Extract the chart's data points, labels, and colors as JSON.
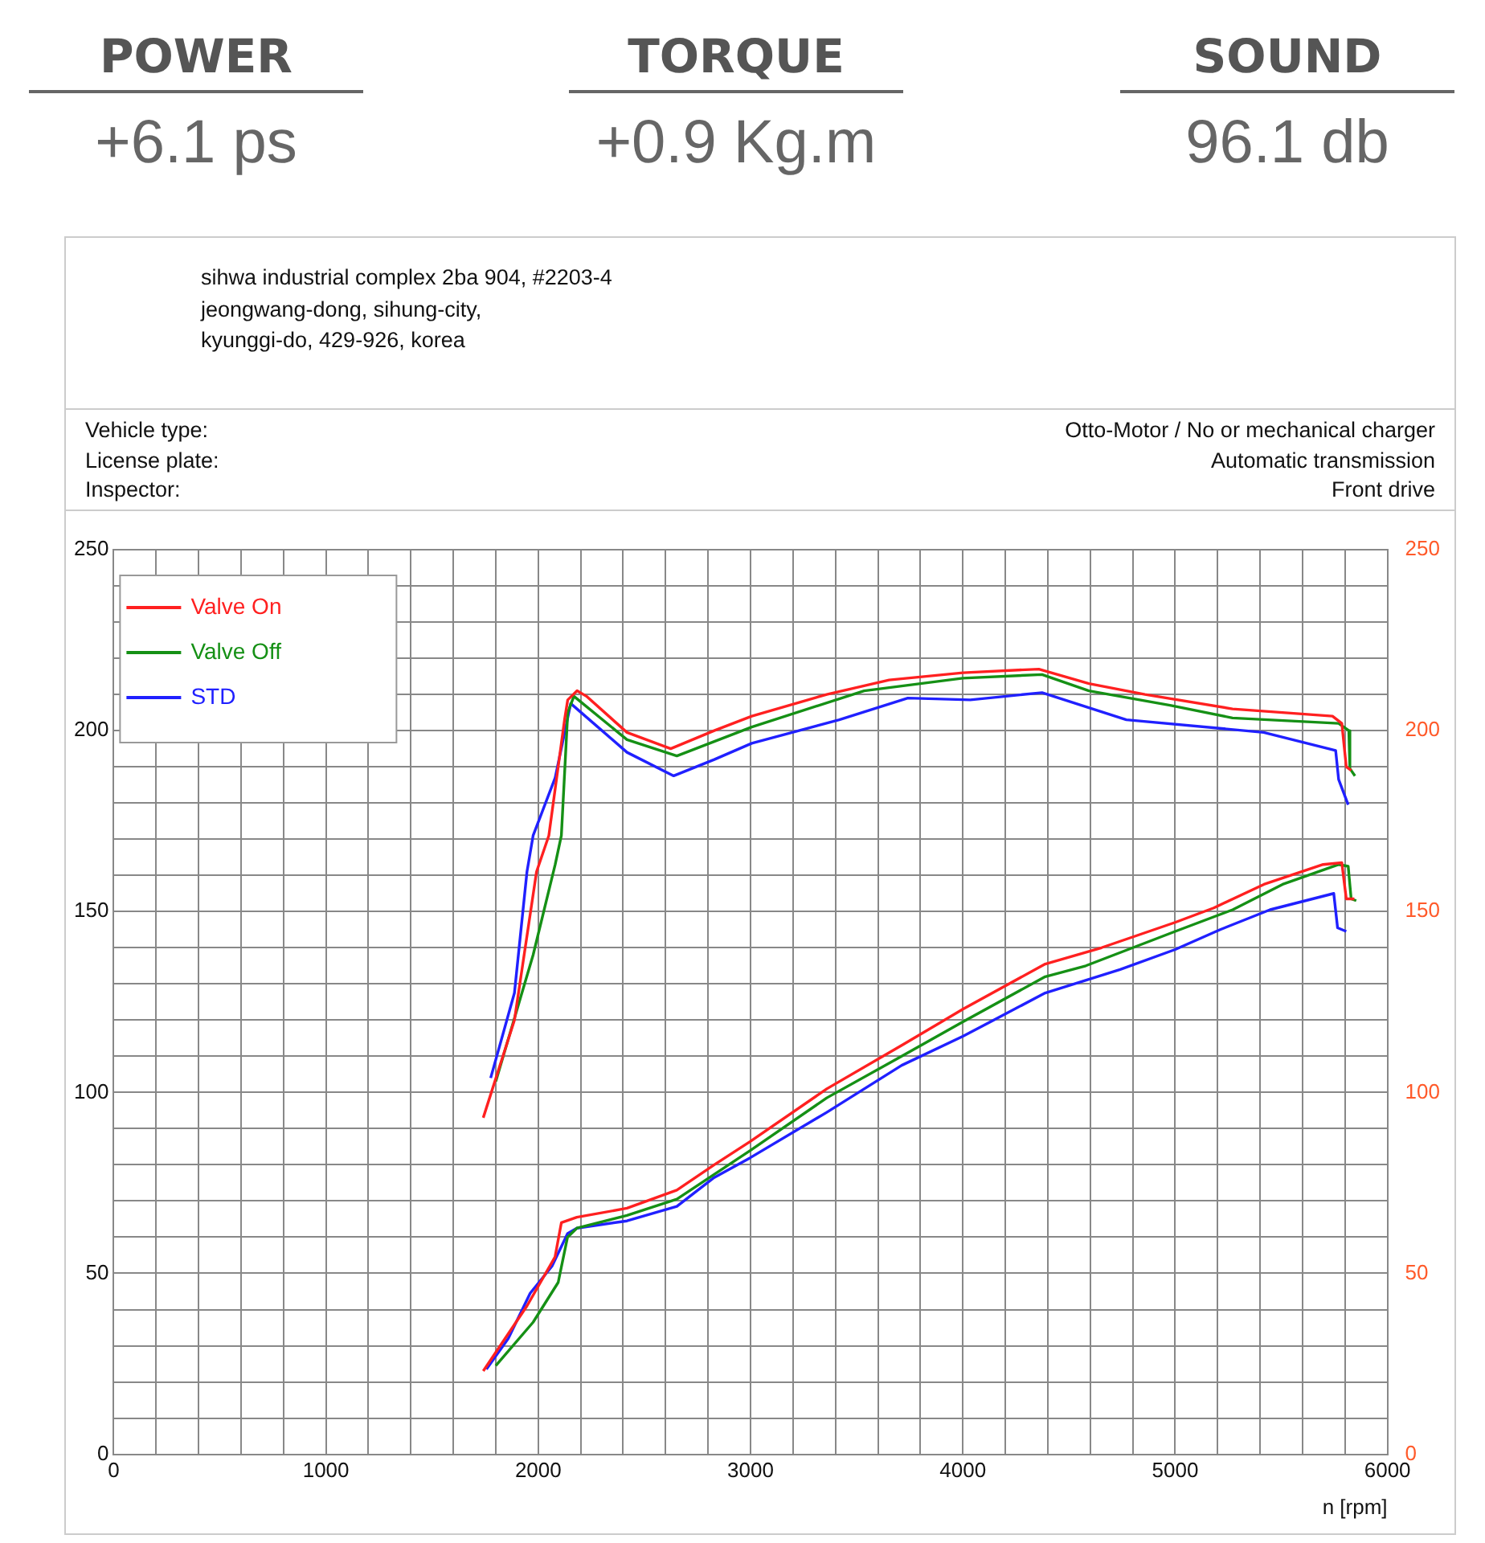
{
  "chart_data": {
    "type": "line",
    "xlabel": "n [rpm]",
    "legend": "top left",
    "grid": true,
    "annotations": [
      "POWER",
      "+6.1 ps",
      "TORQUE",
      "+0.9 Kg.m",
      "SOUND",
      "96.1 db",
      "sihwa industrial complex 2ba 904, #2203-4",
      "jeongwang-dong, sihung-city,",
      "kyunggi-do, 429-926, korea",
      "Vehicle type:",
      "License plate:",
      "Inspector:",
      "Otto-Motor / No or mechanical charger",
      "Automatic transmission",
      "Front drive"
    ],
    "xlim": [
      0,
      6000
    ],
    "ylim": [
      0,
      250
    ],
    "y2lim": [
      0,
      250
    ],
    "xticks": [
      0,
      {
        "value": 200,
        "label": null
      },
      {
        "value": 400,
        "label": null
      },
      {
        "value": 600,
        "label": null
      },
      {
        "value": 800,
        "label": null
      },
      1000,
      {
        "value": 1200,
        "label": null
      },
      {
        "value": 1400,
        "label": null
      },
      {
        "value": 1600,
        "label": null
      },
      {
        "value": 1800,
        "label": null
      },
      2000,
      {
        "value": 2200,
        "label": null
      },
      {
        "value": 2400,
        "label": null
      },
      {
        "value": 2600,
        "label": null
      },
      {
        "value": 2800,
        "label": null
      },
      3000,
      {
        "value": 3200,
        "label": null
      },
      {
        "value": 3400,
        "label": null
      },
      {
        "value": 3600,
        "label": null
      },
      {
        "value": 3800,
        "label": null
      },
      4000,
      {
        "value": 4200,
        "label": null
      },
      {
        "value": 4400,
        "label": null
      },
      {
        "value": 4600,
        "label": null
      },
      {
        "value": 4800,
        "label": null
      },
      5000,
      {
        "value": 5200,
        "label": null
      },
      {
        "value": 5400,
        "label": null
      },
      {
        "value": 5600,
        "label": null
      },
      {
        "value": 5800,
        "label": null
      },
      6000
    ],
    "yticks": [
      0,
      {
        "value": 10,
        "label": null
      },
      {
        "value": 20,
        "label": null
      },
      {
        "value": 30,
        "label": null
      },
      {
        "value": 40,
        "label": null
      },
      50,
      {
        "value": 60,
        "label": null
      },
      {
        "value": 70,
        "label": null
      },
      {
        "value": 80,
        "label": null
      },
      {
        "value": 90,
        "label": null
      },
      100,
      {
        "value": 110,
        "label": null
      },
      {
        "value": 120,
        "label": null
      },
      {
        "value": 130,
        "label": null
      },
      {
        "value": 140,
        "label": null
      },
      150,
      {
        "value": 160,
        "label": null
      },
      {
        "value": 170,
        "label": null
      },
      {
        "value": 180,
        "label": null
      },
      {
        "value": 190,
        "label": null
      },
      200,
      {
        "value": 210,
        "label": null
      },
      {
        "value": 220,
        "label": null
      },
      {
        "value": 230,
        "label": null
      },
      {
        "value": 240,
        "label": null
      },
      250
    ],
    "y2ticks": [
      0,
      50,
      100,
      150,
      200,
      250
    ],
    "series": [
      {
        "name": "Valve On",
        "color": "#ff2020",
        "x": [
          1741,
          1888,
          1992,
          2050,
          2124,
          2139,
          2183,
          2227,
          2418,
          2624,
          2829,
          3006,
          3359,
          3653,
          4000,
          4358,
          4594,
          4858,
          5270,
          5741,
          5785,
          5806,
          5829
        ],
        "values": [
          93,
          120,
          161,
          171,
          203,
          208.5,
          211,
          209.5,
          199.5,
          195,
          200,
          204,
          210,
          214,
          216,
          217,
          213,
          210,
          206,
          204,
          202,
          190,
          189
        ]
      },
      {
        "name": "Valve Off",
        "color": "#159015",
        "x": [
          1800,
          1976,
          2080,
          2109,
          2139,
          2168,
          2418,
          2653,
          3006,
          3535,
          4000,
          4373,
          4594,
          4976,
          5270,
          5770,
          5818,
          5823,
          5847
        ],
        "values": [
          103,
          138,
          163,
          171,
          205,
          209.5,
          197.5,
          193,
          201,
          211,
          214.5,
          215.5,
          211,
          207,
          203.5,
          202,
          200,
          189.5,
          187.5
        ]
      },
      {
        "name": "STD",
        "color": "#2020ff",
        "x": [
          1776,
          1888,
          1947,
          1976,
          2080,
          2153,
          2418,
          2638,
          2829,
          3006,
          3418,
          3741,
          4035,
          4373,
          4770,
          5417,
          5756,
          5770,
          5815
        ],
        "values": [
          104,
          127.5,
          161,
          171,
          187,
          207.5,
          194,
          187.5,
          192,
          196.5,
          203,
          209,
          208.5,
          210.5,
          203,
          199.5,
          194.5,
          186.5,
          179.5
        ]
      },
      {
        "color": "#ff2020",
        "x": [
          1741,
          1947,
          2079,
          2109,
          2182,
          2418,
          2653,
          2829,
          3000,
          3359,
          3712,
          4000,
          4388,
          4653,
          5000,
          5182,
          5418,
          5697,
          5785,
          5806,
          5844
        ],
        "values": [
          23,
          41,
          54.5,
          64,
          65.5,
          68,
          73,
          80,
          86.5,
          101,
          113,
          123,
          135.5,
          140,
          147,
          151,
          157.5,
          163,
          163.5,
          153.5,
          153.5
        ]
      },
      {
        "color": "#159015",
        "x": [
          1800,
          1976,
          2094,
          2138,
          2182,
          2418,
          2653,
          3000,
          3359,
          3712,
          4000,
          4388,
          4579,
          5000,
          5271,
          5506,
          5771,
          5815,
          5829,
          5853
        ],
        "values": [
          24.5,
          36.5,
          47.5,
          60,
          62.5,
          66,
          70.5,
          84,
          98.5,
          110,
          119.5,
          132,
          135,
          144.5,
          150.5,
          157.5,
          163,
          162.5,
          153.5,
          153
        ]
      },
      {
        "color": "#2020ff",
        "x": [
          1756,
          1859,
          1962,
          2065,
          2138,
          2182,
          2418,
          2653,
          2829,
          3000,
          3359,
          3712,
          4000,
          4388,
          4741,
          5000,
          5212,
          5447,
          5747,
          5765,
          5806
        ],
        "values": [
          23.5,
          32,
          44.5,
          52,
          61,
          62.5,
          64.5,
          68.5,
          76.5,
          82,
          94.5,
          107.5,
          115.5,
          127.5,
          134,
          139.5,
          145,
          150.5,
          155,
          145.5,
          144.5
        ]
      }
    ]
  }
}
